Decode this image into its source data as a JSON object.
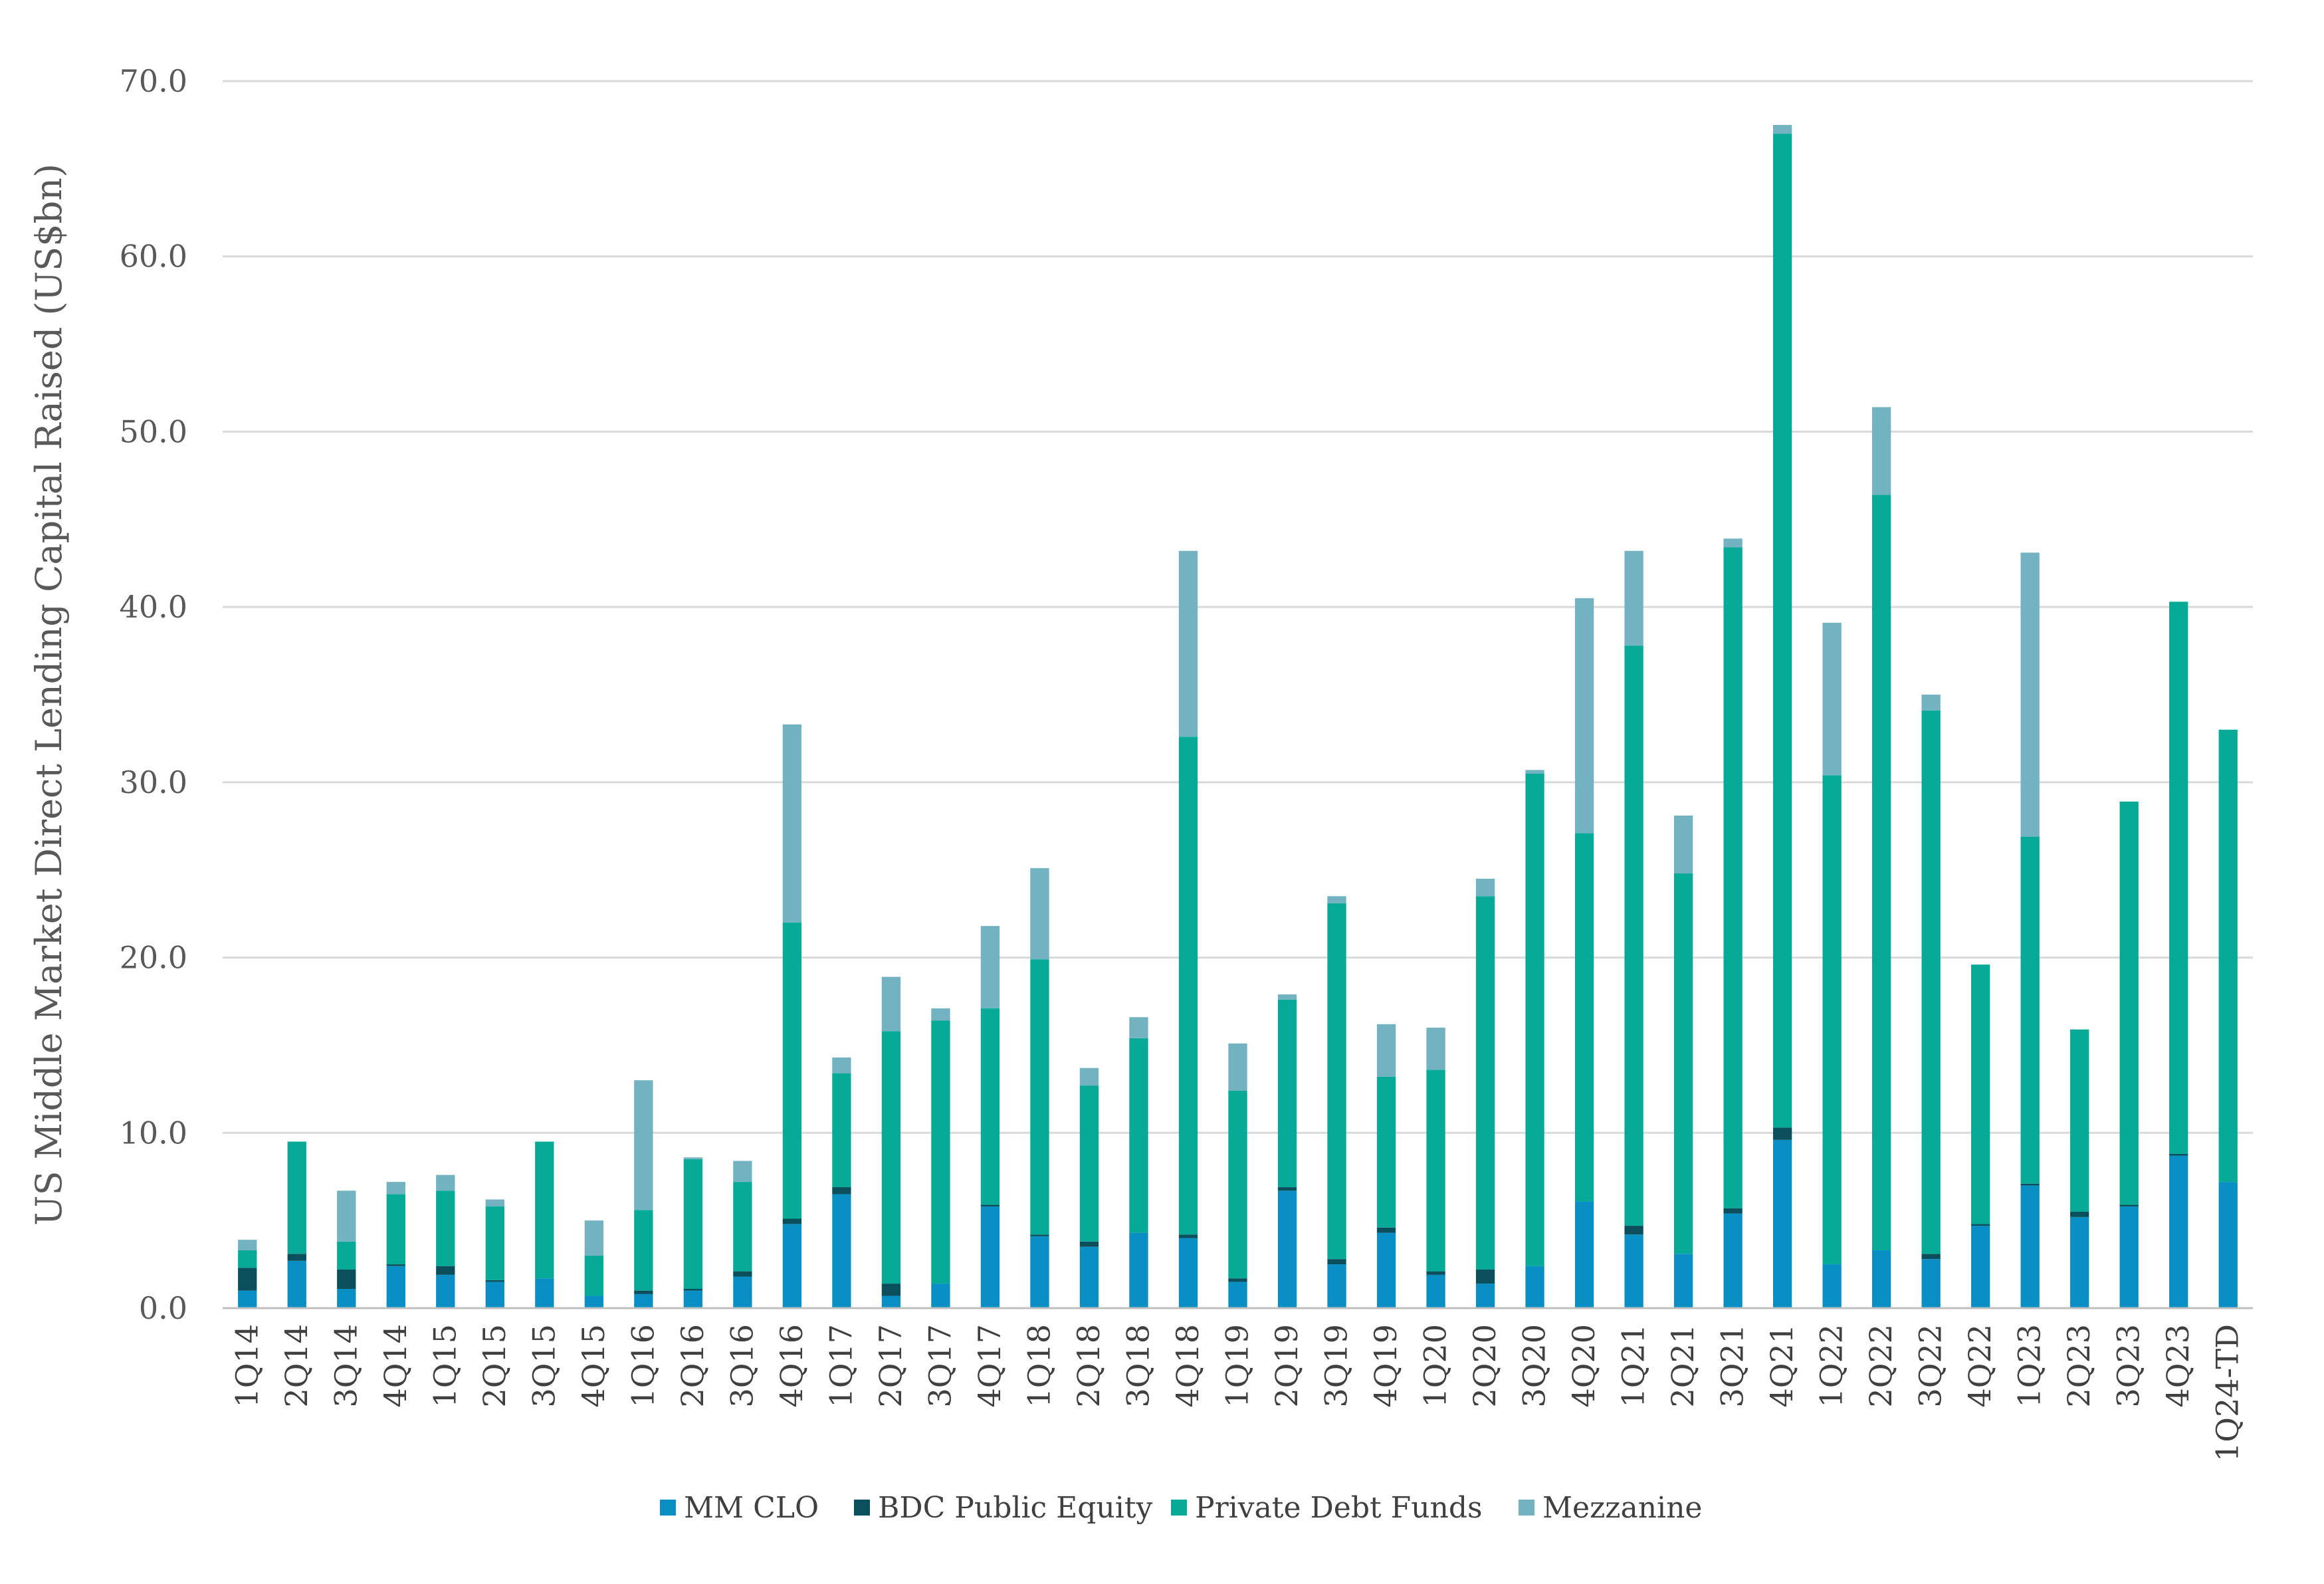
{
  "chart_data": {
    "type": "bar",
    "stacked": true,
    "ylabel": "US Middle Market Direct Lending Capital Raised (US$bn)",
    "ylim": [
      0,
      70
    ],
    "yticks": [
      "0.0",
      "10.0",
      "20.0",
      "30.0",
      "40.0",
      "50.0",
      "60.0",
      "70.0"
    ],
    "grid": true,
    "legend_position": "bottom",
    "categories": [
      "1Q14",
      "2Q14",
      "3Q14",
      "4Q14",
      "1Q15",
      "2Q15",
      "3Q15",
      "4Q15",
      "1Q16",
      "2Q16",
      "3Q16",
      "4Q16",
      "1Q17",
      "2Q17",
      "3Q17",
      "4Q17",
      "1Q18",
      "2Q18",
      "3Q18",
      "4Q18",
      "1Q19",
      "2Q19",
      "3Q19",
      "4Q19",
      "1Q20",
      "2Q20",
      "3Q20",
      "4Q20",
      "1Q21",
      "2Q21",
      "3Q21",
      "4Q21",
      "1Q22",
      "2Q22",
      "3Q22",
      "4Q22",
      "1Q23",
      "2Q23",
      "3Q23",
      "4Q23",
      "1Q24-TD"
    ],
    "series": [
      {
        "name": "MM CLO",
        "color": "#0A8FC4",
        "values": [
          1.0,
          2.7,
          1.1,
          2.4,
          1.9,
          1.5,
          1.7,
          0.7,
          0.8,
          1.0,
          1.8,
          4.8,
          6.5,
          0.7,
          1.4,
          5.8,
          4.1,
          3.5,
          4.3,
          4.0,
          1.5,
          6.7,
          2.5,
          4.3,
          1.9,
          1.4,
          2.4,
          6.1,
          4.2,
          3.1,
          5.4,
          9.6,
          2.5,
          3.3,
          2.8,
          4.7,
          7.0,
          5.2,
          5.8,
          8.7,
          7.2
        ]
      },
      {
        "name": "BDC Public Equity",
        "color": "#0B4F5C",
        "values": [
          1.3,
          0.4,
          1.1,
          0.1,
          0.5,
          0.1,
          0.0,
          0.0,
          0.2,
          0.1,
          0.3,
          0.3,
          0.4,
          0.7,
          0.0,
          0.1,
          0.1,
          0.3,
          0.0,
          0.2,
          0.2,
          0.2,
          0.3,
          0.3,
          0.2,
          0.8,
          0.0,
          0.0,
          0.5,
          0.0,
          0.3,
          0.7,
          0.0,
          0.0,
          0.3,
          0.1,
          0.1,
          0.3,
          0.1,
          0.1,
          0.0
        ]
      },
      {
        "name": "Private Debt Funds",
        "color": "#06AA96",
        "values": [
          1.0,
          6.4,
          1.6,
          4.0,
          4.3,
          4.2,
          7.8,
          2.3,
          4.6,
          7.4,
          5.1,
          16.9,
          6.5,
          14.4,
          15.0,
          11.2,
          15.7,
          8.9,
          11.1,
          28.4,
          10.7,
          10.7,
          20.3,
          8.6,
          11.5,
          21.3,
          28.1,
          21.0,
          33.1,
          21.7,
          37.7,
          56.7,
          27.9,
          43.1,
          31.0,
          14.8,
          19.8,
          10.4,
          23.0,
          31.5,
          25.8
        ]
      },
      {
        "name": "Mezzanine",
        "color": "#73B2C0",
        "values": [
          0.6,
          0.0,
          2.9,
          0.7,
          0.9,
          0.4,
          0.0,
          2.0,
          7.4,
          0.1,
          1.2,
          11.3,
          0.9,
          3.1,
          0.7,
          4.7,
          5.2,
          1.0,
          1.2,
          10.6,
          2.7,
          0.3,
          0.4,
          3.0,
          2.4,
          1.0,
          0.2,
          13.4,
          5.4,
          3.3,
          0.5,
          0.5,
          8.7,
          5.0,
          0.9,
          0.0,
          16.2,
          0.0,
          0.0,
          0.0,
          0.0
        ]
      }
    ]
  }
}
